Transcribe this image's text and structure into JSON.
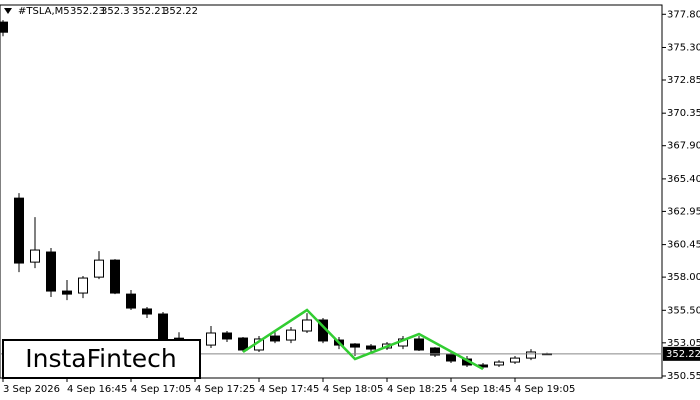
{
  "chart_data": {
    "type": "candlestick",
    "title": "#TSLA,M5",
    "ohlc_header": [
      352.23,
      352.3,
      352.21,
      352.22
    ],
    "categories": [
      "3 Sep 2026",
      null,
      null,
      null,
      "4 Sep 16:45",
      null,
      null,
      null,
      "4 Sep 17:05",
      null,
      null,
      null,
      "4 Sep 17:25",
      null,
      null,
      null,
      "4 Sep 17:45",
      null,
      null,
      null,
      "4 Sep 18:05",
      null,
      null,
      null,
      "4 Sep 18:25",
      null,
      null,
      null,
      "4 Sep 18:45",
      null,
      null,
      null,
      "4 Sep 19:05",
      null,
      null
    ],
    "open": [
      377.21,
      363.95,
      359.13,
      359.89,
      356.95,
      356.8,
      358.0,
      359.28,
      356.72,
      355.6,
      355.22,
      353.4,
      352.7,
      352.88,
      353.79,
      353.41,
      352.51,
      353.56,
      353.26,
      353.94,
      354.77,
      353.26,
      352.96,
      352.81,
      352.66,
      352.81,
      353.34,
      352.66,
      352.21,
      351.83,
      351.38,
      351.38,
      351.6,
      351.9,
      352.23
    ],
    "high": [
      377.36,
      364.33,
      362.52,
      360.19,
      357.78,
      358.08,
      359.96,
      359.36,
      357.03,
      355.75,
      355.37,
      353.85,
      353.2,
      354.32,
      353.94,
      353.49,
      353.56,
      353.86,
      354.24,
      355.29,
      354.92,
      353.49,
      353.03,
      352.96,
      353.11,
      353.56,
      353.56,
      352.73,
      352.43,
      352.06,
      351.53,
      351.75,
      352.06,
      352.58,
      352.3
    ],
    "low": [
      376.15,
      358.38,
      358.68,
      356.5,
      356.27,
      356.42,
      357.85,
      356.72,
      355.52,
      354.92,
      352.7,
      352.5,
      352.6,
      352.66,
      353.11,
      352.36,
      352.36,
      353.03,
      353.03,
      353.79,
      353.03,
      352.58,
      352.06,
      352.36,
      352.51,
      352.58,
      352.43,
      351.98,
      351.53,
      351.23,
      351.08,
      351.23,
      351.45,
      351.75,
      352.21
    ],
    "close": [
      376.45,
      359.06,
      360.04,
      356.95,
      356.72,
      357.93,
      359.28,
      356.8,
      355.67,
      355.22,
      352.9,
      352.7,
      353.0,
      353.79,
      353.34,
      352.51,
      353.34,
      353.19,
      354.01,
      354.77,
      353.19,
      352.88,
      352.73,
      352.58,
      352.96,
      353.34,
      352.51,
      352.13,
      351.68,
      351.38,
      351.23,
      351.6,
      351.9,
      352.36,
      352.22
    ],
    "pattern": {
      "color": "#32cd32",
      "bars": [
        15,
        19,
        22,
        26,
        30
      ],
      "values": [
        352.36,
        355.52,
        351.83,
        353.71,
        351.08
      ]
    },
    "current_price": 352.22,
    "ylim": [
      350.4,
      378.5
    ],
    "yticks": [
      {
        "value": 377.8,
        "label": "377.80"
      },
      {
        "value": 375.3,
        "label": "375.30"
      },
      {
        "value": 372.85,
        "label": "372.85"
      },
      {
        "value": 370.35,
        "label": "370.35"
      },
      {
        "value": 367.9,
        "label": "367.90"
      },
      {
        "value": 365.4,
        "label": "365.40"
      },
      {
        "value": 362.95,
        "label": "362.95"
      },
      {
        "value": 360.45,
        "label": "360.45"
      },
      {
        "value": 358,
        "label": "358.00"
      },
      {
        "value": 355.5,
        "label": "355.50"
      },
      {
        "value": 353.05,
        "label": "353.05"
      },
      {
        "value": 350.55,
        "label": "350.55"
      }
    ]
  },
  "watermark": "InstaFintech"
}
